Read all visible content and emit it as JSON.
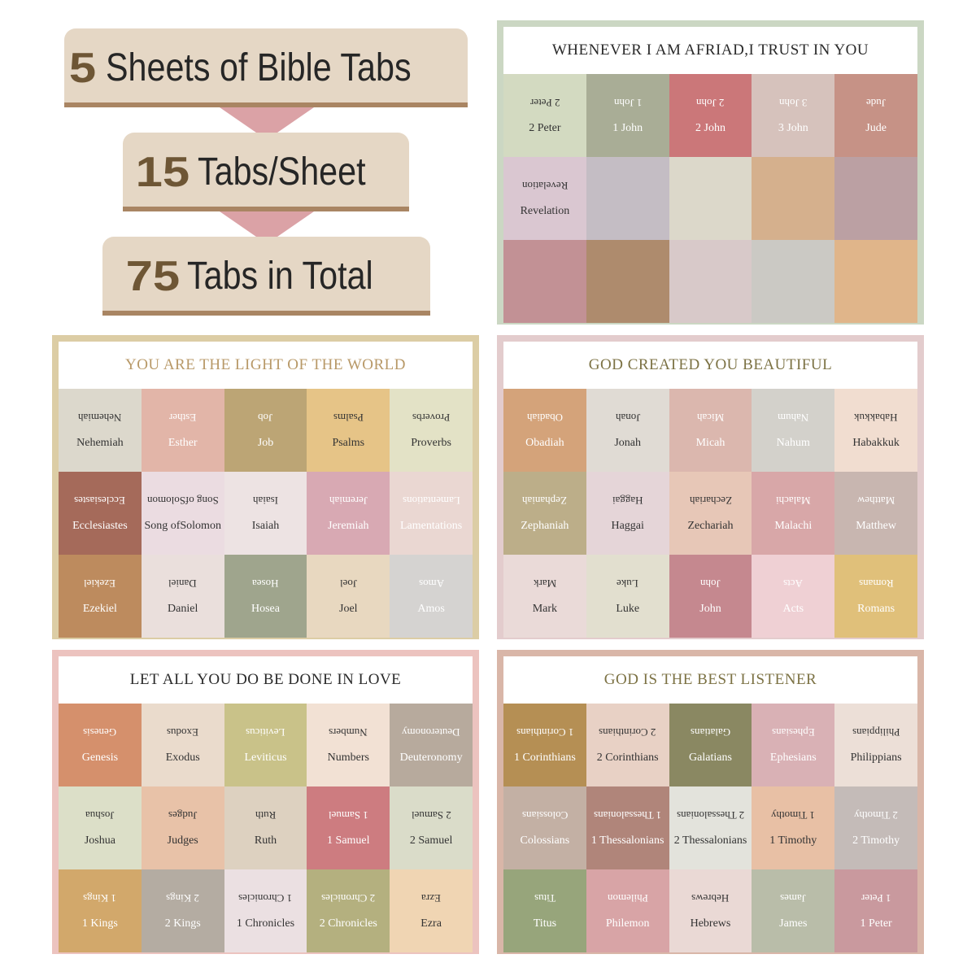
{
  "header": {
    "line1": {
      "num": "5",
      "text": "Sheets of Bible Tabs"
    },
    "line2": {
      "num": "15",
      "text": "Tabs/Sheet"
    },
    "line3": {
      "num": "75",
      "text": "Tabs in Total"
    }
  },
  "sheets": [
    {
      "id": "s1",
      "title": "WHENEVER I AM AFRIAD,I TRUST IN YOU",
      "frame_color": "#cbd7c3",
      "title_color": "#2a2a2a",
      "tabs": [
        {
          "label": "2 Peter",
          "bg": "#d3dac1",
          "fg": "#333333"
        },
        {
          "label": "1 John",
          "bg": "#a9ad96",
          "fg": "#ffffff"
        },
        {
          "label": "2 John",
          "bg": "#cb7779",
          "fg": "#ffffff"
        },
        {
          "label": "3 John",
          "bg": "#d6c2bc",
          "fg": "#ffffff"
        },
        {
          "label": "Jude",
          "bg": "#c69286",
          "fg": "#ffffff"
        },
        {
          "label": "Revelation",
          "bg": "#dac7d1",
          "fg": "#333333"
        },
        {
          "label": "",
          "bg": "#c4bdc4",
          "fg": "#ffffff"
        },
        {
          "label": "",
          "bg": "#dcd8ca",
          "fg": "#ffffff"
        },
        {
          "label": "",
          "bg": "#d5b08d",
          "fg": "#ffffff"
        },
        {
          "label": "",
          "bg": "#bba0a3",
          "fg": "#ffffff"
        },
        {
          "label": "",
          "bg": "#c29195",
          "fg": "#ffffff"
        },
        {
          "label": "",
          "bg": "#ae8b6d",
          "fg": "#ffffff"
        },
        {
          "label": "",
          "bg": "#d8c9c9",
          "fg": "#ffffff"
        },
        {
          "label": "",
          "bg": "#cbc9c4",
          "fg": "#ffffff"
        },
        {
          "label": "",
          "bg": "#e0b58a",
          "fg": "#ffffff"
        }
      ]
    },
    {
      "id": "s2",
      "title": "YOU ARE THE LIGHT OF THE WORLD",
      "frame_color": "#dccda5",
      "title_color": "#b89968",
      "tabs": [
        {
          "label": "Nehemiah",
          "bg": "#dcd8cc",
          "fg": "#333333"
        },
        {
          "label": "Esther",
          "bg": "#e2b5a8",
          "fg": "#ffffff"
        },
        {
          "label": "Job",
          "bg": "#bca575",
          "fg": "#ffffff"
        },
        {
          "label": "Psalms",
          "bg": "#e6c487",
          "fg": "#333333"
        },
        {
          "label": "Proverbs",
          "bg": "#e3e2c6",
          "fg": "#333333"
        },
        {
          "label": "Ecclesiastes",
          "bg": "#a56a5a",
          "fg": "#ffffff"
        },
        {
          "label": "Song ofSolomon",
          "bg": "#ebdce1",
          "fg": "#333333"
        },
        {
          "label": "Isaiah",
          "bg": "#ede3e3",
          "fg": "#333333"
        },
        {
          "label": "Jeremiah",
          "bg": "#d8a9b3",
          "fg": "#ffffff"
        },
        {
          "label": "Lamentations",
          "bg": "#ead7d2",
          "fg": "#ffffff"
        },
        {
          "label": "Ezekiel",
          "bg": "#bd8b5e",
          "fg": "#ffffff"
        },
        {
          "label": "Daniel",
          "bg": "#eadfdc",
          "fg": "#333333"
        },
        {
          "label": "Hosea",
          "bg": "#9fa58d",
          "fg": "#ffffff"
        },
        {
          "label": "Joel",
          "bg": "#e8d8c0",
          "fg": "#333333"
        },
        {
          "label": "Amos",
          "bg": "#d5d3d1",
          "fg": "#ffffff"
        }
      ]
    },
    {
      "id": "s3",
      "title": "GOD CREATED YOU BEAUTIFUL",
      "frame_color": "#e3cccd",
      "title_color": "#7c7244",
      "tabs": [
        {
          "label": "Obadiah",
          "bg": "#d4a37a",
          "fg": "#ffffff"
        },
        {
          "label": "Jonah",
          "bg": "#e0dbd4",
          "fg": "#333333"
        },
        {
          "label": "Micah",
          "bg": "#dbb7ae",
          "fg": "#ffffff"
        },
        {
          "label": "Nahum",
          "bg": "#d3d1cb",
          "fg": "#ffffff"
        },
        {
          "label": "Habakkuk",
          "bg": "#f1ddd0",
          "fg": "#333333"
        },
        {
          "label": "Zephaniah",
          "bg": "#bcae89",
          "fg": "#ffffff"
        },
        {
          "label": "Haggai",
          "bg": "#e5d5d8",
          "fg": "#333333"
        },
        {
          "label": "Zechariah",
          "bg": "#e7c7b7",
          "fg": "#333333"
        },
        {
          "label": "Malachi",
          "bg": "#d8a7a8",
          "fg": "#ffffff"
        },
        {
          "label": "Matthew",
          "bg": "#c8b6b0",
          "fg": "#ffffff"
        },
        {
          "label": "Mark",
          "bg": "#eadad8",
          "fg": "#333333"
        },
        {
          "label": "Luke",
          "bg": "#e2dfcf",
          "fg": "#333333"
        },
        {
          "label": "John",
          "bg": "#c5888f",
          "fg": "#ffffff"
        },
        {
          "label": "Acts",
          "bg": "#efd0d4",
          "fg": "#ffffff"
        },
        {
          "label": "Romans",
          "bg": "#e0c07a",
          "fg": "#ffffff"
        }
      ]
    },
    {
      "id": "s4",
      "title": "LET ALL YOU DO BE DONE IN LOVE",
      "frame_color": "#ecc3bf",
      "title_color": "#2a2a2a",
      "tabs": [
        {
          "label": "Genesis",
          "bg": "#d5906c",
          "fg": "#ffffff"
        },
        {
          "label": "Exodus",
          "bg": "#eadbcc",
          "fg": "#333333"
        },
        {
          "label": "Leviticus",
          "bg": "#c9c289",
          "fg": "#ffffff"
        },
        {
          "label": "Numbers",
          "bg": "#f2e1d4",
          "fg": "#333333"
        },
        {
          "label": "Deuteronomy",
          "bg": "#b7aa9d",
          "fg": "#ffffff"
        },
        {
          "label": "Joshua",
          "bg": "#dcdfc8",
          "fg": "#333333"
        },
        {
          "label": "Judges",
          "bg": "#e8c2a8",
          "fg": "#333333"
        },
        {
          "label": "Ruth",
          "bg": "#ddd1c0",
          "fg": "#333333"
        },
        {
          "label": "1 Samuel",
          "bg": "#cd7c80",
          "fg": "#ffffff"
        },
        {
          "label": "2 Samuel",
          "bg": "#dadcc9",
          "fg": "#333333"
        },
        {
          "label": "1 Kings",
          "bg": "#d2a86b",
          "fg": "#ffffff"
        },
        {
          "label": "2 Kings",
          "bg": "#b4aca2",
          "fg": "#ffffff"
        },
        {
          "label": "1 Chronicles",
          "bg": "#ebe0e2",
          "fg": "#333333"
        },
        {
          "label": "2 Chronicles",
          "bg": "#b4b07f",
          "fg": "#ffffff"
        },
        {
          "label": "Ezra",
          "bg": "#f0d5b3",
          "fg": "#333333"
        }
      ]
    },
    {
      "id": "s5",
      "title": "GOD IS THE BEST LISTENER",
      "frame_color": "#d9b6a8",
      "title_color": "#7c7244",
      "tabs": [
        {
          "label": "1 Corinthians",
          "bg": "#b58f54",
          "fg": "#ffffff"
        },
        {
          "label": "2 Corinthians",
          "bg": "#e8d1c5",
          "fg": "#333333"
        },
        {
          "label": "Galatians",
          "bg": "#8a8862",
          "fg": "#ffffff"
        },
        {
          "label": "Ephesians",
          "bg": "#d9b1b5",
          "fg": "#ffffff"
        },
        {
          "label": "Philippians",
          "bg": "#ecdfd7",
          "fg": "#333333"
        },
        {
          "label": "Colossians",
          "bg": "#c3b0a4",
          "fg": "#ffffff"
        },
        {
          "label": "1 Thessalonians",
          "bg": "#b0857a",
          "fg": "#ffffff"
        },
        {
          "label": "2 Thessalonians",
          "bg": "#e3e3dc",
          "fg": "#333333"
        },
        {
          "label": "1 Timothy",
          "bg": "#e8c0a5",
          "fg": "#333333"
        },
        {
          "label": "2 Timothy",
          "bg": "#c4bbb8",
          "fg": "#ffffff"
        },
        {
          "label": "Titus",
          "bg": "#97a57b",
          "fg": "#ffffff"
        },
        {
          "label": "Philemon",
          "bg": "#d8a4a6",
          "fg": "#ffffff"
        },
        {
          "label": "Hebrews",
          "bg": "#ead9d5",
          "fg": "#333333"
        },
        {
          "label": "James",
          "bg": "#b9bda9",
          "fg": "#ffffff"
        },
        {
          "label": "1 Peter",
          "bg": "#c9999e",
          "fg": "#ffffff"
        }
      ]
    }
  ]
}
